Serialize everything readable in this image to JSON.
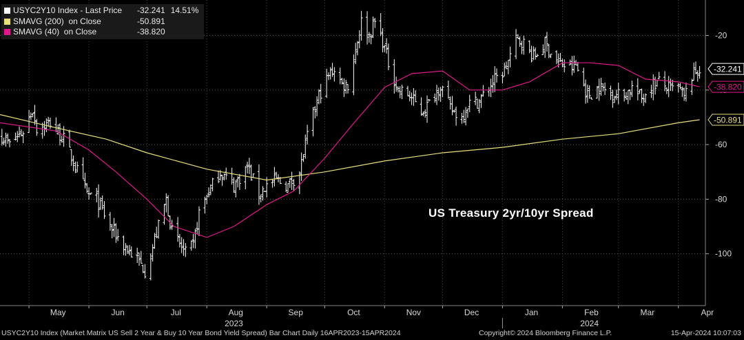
{
  "legend": {
    "items": [
      {
        "name": "USYC2Y10 Index - Last Price",
        "value": "-32.241",
        "change": "14.51%",
        "color": "#ffffff"
      },
      {
        "name": "SMAVG (200)  on Close",
        "value": "-50.891",
        "change": "",
        "color": "#e8e07a"
      },
      {
        "name": "SMAVG (40)  on Close",
        "value": "-38.820",
        "change": "",
        "color": "#e0198a"
      }
    ]
  },
  "annotation": "US Treasury 2yr/10yr Spread",
  "footer": {
    "left": "USYC2Y10 Index (Market Matrix US Sell 2 Year & Buy 10 Year Bond Yield Spread) Bar Chart  Daily 16APR2023-15APR2024",
    "middle": "Copyright© 2024 Bloomberg Finance L.P.",
    "right": "15-Apr-2024 10:07:03"
  },
  "chart_data": {
    "type": "bar",
    "subtype": "ohlc",
    "ylim": [
      -119,
      -7
    ],
    "y_ticks": [
      -20,
      -40,
      -60,
      -80,
      -100
    ],
    "y_tick_labels": [
      "-20",
      "-40",
      "-60",
      "-80",
      "-100"
    ],
    "x_range": [
      "2023-04-16",
      "2024-04-15"
    ],
    "x_ticks": [
      {
        "date": "2023-05-01",
        "label": "May"
      },
      {
        "date": "2023-06-01",
        "label": "Jun"
      },
      {
        "date": "2023-07-01",
        "label": "Jul"
      },
      {
        "date": "2023-08-01",
        "label": "Aug"
      },
      {
        "date": "2023-09-01",
        "label": "Sep"
      },
      {
        "date": "2023-10-01",
        "label": "Oct"
      },
      {
        "date": "2023-11-01",
        "label": "Nov"
      },
      {
        "date": "2023-12-01",
        "label": "Dec"
      },
      {
        "date": "2024-01-01",
        "label": "Jan"
      },
      {
        "date": "2024-02-01",
        "label": "Feb"
      },
      {
        "date": "2024-03-01",
        "label": "Mar"
      },
      {
        "date": "2024-04-01",
        "label": "Apr"
      }
    ],
    "year_labels": [
      {
        "date": "2023-08-15",
        "label": "2023"
      },
      {
        "date": "2024-02-15",
        "label": "2024"
      }
    ],
    "year_separator": "2024-01-01",
    "price_path": [
      [
        "2023-04-17",
        -57
      ],
      [
        "2023-04-21",
        -60
      ],
      [
        "2023-04-28",
        -55
      ],
      [
        "2023-05-03",
        -47
      ],
      [
        "2023-05-05",
        -54
      ],
      [
        "2023-05-12",
        -52
      ],
      [
        "2023-05-19",
        -58
      ],
      [
        "2023-05-25",
        -68
      ],
      [
        "2023-05-31",
        -78
      ],
      [
        "2023-06-05",
        -80
      ],
      [
        "2023-06-12",
        -90
      ],
      [
        "2023-06-19",
        -97
      ],
      [
        "2023-06-26",
        -102
      ],
      [
        "2023-06-30",
        -106
      ],
      [
        "2023-07-03",
        -100
      ],
      [
        "2023-07-07",
        -90
      ],
      [
        "2023-07-11",
        -80
      ],
      [
        "2023-07-14",
        -92
      ],
      [
        "2023-07-21",
        -100
      ],
      [
        "2023-07-25",
        -97
      ],
      [
        "2023-07-28",
        -85
      ],
      [
        "2023-08-02",
        -77
      ],
      [
        "2023-08-08",
        -70
      ],
      [
        "2023-08-15",
        -75
      ],
      [
        "2023-08-22",
        -68
      ],
      [
        "2023-08-28",
        -78
      ],
      [
        "2023-09-01",
        -75
      ],
      [
        "2023-09-06",
        -73
      ],
      [
        "2023-09-12",
        -75
      ],
      [
        "2023-09-18",
        -70
      ],
      [
        "2023-09-22",
        -57
      ],
      [
        "2023-09-28",
        -42
      ],
      [
        "2023-10-03",
        -35
      ],
      [
        "2023-10-06",
        -32
      ],
      [
        "2023-10-10",
        -38
      ],
      [
        "2023-10-13",
        -38
      ],
      [
        "2023-10-17",
        -25
      ],
      [
        "2023-10-20",
        -15
      ],
      [
        "2023-10-24",
        -20
      ],
      [
        "2023-10-27",
        -15
      ],
      [
        "2023-10-31",
        -22
      ],
      [
        "2023-11-03",
        -30
      ],
      [
        "2023-11-08",
        -40
      ],
      [
        "2023-11-14",
        -42
      ],
      [
        "2023-11-20",
        -48
      ],
      [
        "2023-11-24",
        -45
      ],
      [
        "2023-11-30",
        -38
      ],
      [
        "2023-12-05",
        -47
      ],
      [
        "2023-12-11",
        -50
      ],
      [
        "2023-12-14",
        -45
      ],
      [
        "2023-12-20",
        -44
      ],
      [
        "2023-12-27",
        -37
      ],
      [
        "2024-01-02",
        -33
      ],
      [
        "2024-01-08",
        -22
      ],
      [
        "2024-01-11",
        -22
      ],
      [
        "2024-01-17",
        -28
      ],
      [
        "2024-01-23",
        -23
      ],
      [
        "2024-01-30",
        -30
      ],
      [
        "2024-02-05",
        -32
      ],
      [
        "2024-02-08",
        -31
      ],
      [
        "2024-02-14",
        -42
      ],
      [
        "2024-02-20",
        -39
      ],
      [
        "2024-02-26",
        -41
      ],
      [
        "2024-03-04",
        -42
      ],
      [
        "2024-03-08",
        -39
      ],
      [
        "2024-03-13",
        -43
      ],
      [
        "2024-03-18",
        -38
      ],
      [
        "2024-03-22",
        -37
      ],
      [
        "2024-03-28",
        -40
      ],
      [
        "2024-04-01",
        -39
      ],
      [
        "2024-04-04",
        -43
      ],
      [
        "2024-04-08",
        -35
      ],
      [
        "2024-04-12",
        -32
      ]
    ],
    "series": [
      {
        "name": "SMAVG (200)  on Close",
        "color": "#e8e07a",
        "points": [
          [
            "2023-04-16",
            -49
          ],
          [
            "2023-05-10",
            -53
          ],
          [
            "2023-06-10",
            -58
          ],
          [
            "2023-07-01",
            -63
          ],
          [
            "2023-08-01",
            -69
          ],
          [
            "2023-09-01",
            -73
          ],
          [
            "2023-10-01",
            -70
          ],
          [
            "2023-11-01",
            -66
          ],
          [
            "2023-12-01",
            -63
          ],
          [
            "2024-01-01",
            -61
          ],
          [
            "2024-02-01",
            -58
          ],
          [
            "2024-03-01",
            -56
          ],
          [
            "2024-04-01",
            -52
          ],
          [
            "2024-04-12",
            -50.891
          ]
        ]
      },
      {
        "name": "SMAVG (40)  on Close",
        "color": "#e0198a",
        "points": [
          [
            "2023-04-16",
            -52
          ],
          [
            "2023-05-15",
            -55
          ],
          [
            "2023-06-01",
            -62
          ],
          [
            "2023-06-15",
            -70
          ],
          [
            "2023-07-01",
            -80
          ],
          [
            "2023-07-15",
            -90
          ],
          [
            "2023-08-01",
            -94
          ],
          [
            "2023-08-15",
            -90
          ],
          [
            "2023-09-01",
            -82
          ],
          [
            "2023-09-15",
            -77
          ],
          [
            "2023-10-01",
            -65
          ],
          [
            "2023-10-15",
            -53
          ],
          [
            "2023-11-01",
            -39
          ],
          [
            "2023-11-15",
            -34
          ],
          [
            "2023-12-01",
            -33
          ],
          [
            "2023-12-15",
            -40
          ],
          [
            "2024-01-01",
            -40
          ],
          [
            "2024-01-15",
            -37
          ],
          [
            "2024-02-01",
            -30
          ],
          [
            "2024-02-15",
            -30
          ],
          [
            "2024-03-01",
            -31
          ],
          [
            "2024-03-15",
            -36
          ],
          [
            "2024-04-01",
            -37
          ],
          [
            "2024-04-12",
            -38.82
          ]
        ]
      }
    ],
    "last_value_labels": [
      {
        "label": "-32.241",
        "value": -32.241,
        "color": "#ffffff"
      },
      {
        "label": "-38.820",
        "value": -38.82,
        "color": "#e0198a"
      },
      {
        "label": "-50.891",
        "value": -50.891,
        "color": "#e8e07a"
      }
    ],
    "grid": true,
    "axis_side": "right"
  }
}
